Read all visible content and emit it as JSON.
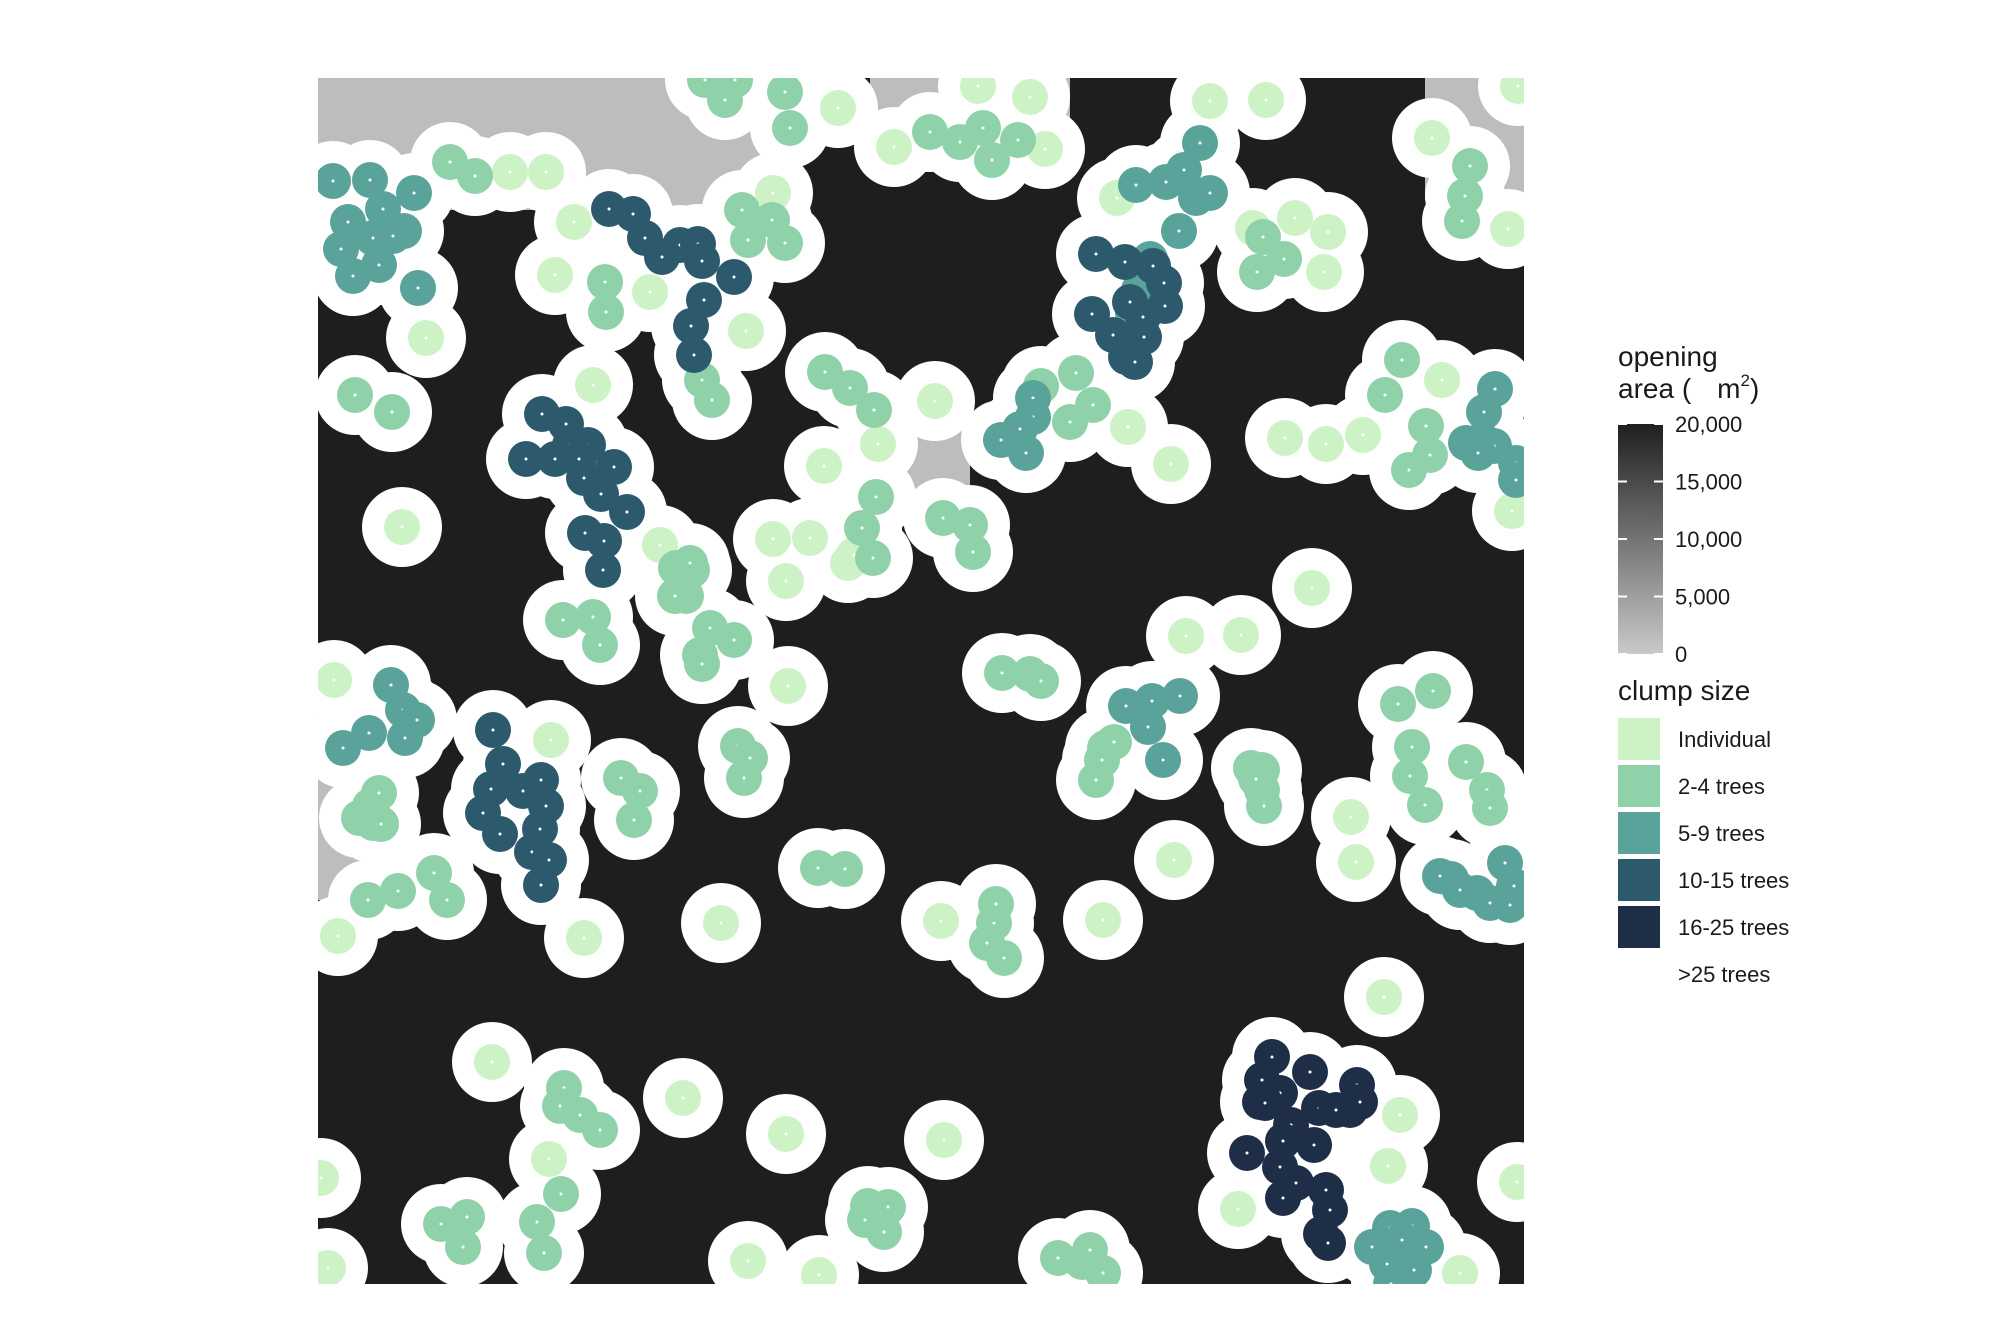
{
  "legend": {
    "opening": {
      "title_line1": "opening",
      "title_line2_prefix": "area (",
      "title_unit": "m",
      "title_sup": "2",
      "title_close": ")",
      "ticks": [
        {
          "value": 20000,
          "label": "20,000"
        },
        {
          "value": 15000,
          "label": "15,000"
        },
        {
          "value": 10000,
          "label": "10,000"
        },
        {
          "value": 5000,
          "label": "5,000"
        },
        {
          "value": 0,
          "label": "0"
        }
      ],
      "range": [
        0,
        20000
      ],
      "gradient": {
        "low": "#c9c9c9",
        "high": "#1f1f1f"
      }
    },
    "clump": {
      "title": "clump size",
      "items": [
        {
          "label": "Individual",
          "color": "#ccf2c6"
        },
        {
          "label": "2-4 trees",
          "color": "#8fd2aa"
        },
        {
          "label": "5-9 trees",
          "color": "#5aa39a"
        },
        {
          "label": "10-15 trees",
          "color": "#2c5a6c"
        },
        {
          "label": "16-25 trees",
          "color": "#1f2e47"
        },
        {
          "label": ">25 trees",
          "color": "#ffffff"
        }
      ]
    }
  },
  "map": {
    "colors": {
      "opening_large": "#1e1e1e",
      "opening_small": "#bdbdbd",
      "buffer": "#ffffff"
    }
  }
}
